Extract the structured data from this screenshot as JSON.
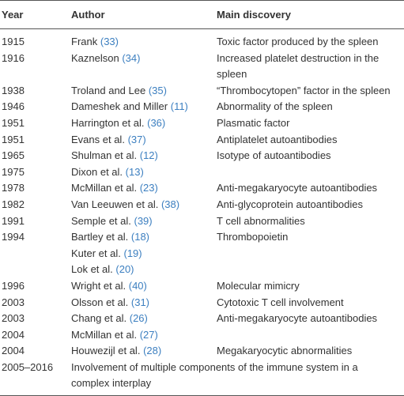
{
  "table": {
    "columns": [
      "Year",
      "Author",
      "Main discovery"
    ],
    "rows": [
      {
        "year": "1915",
        "authors": [
          {
            "name": "Frank",
            "ref": "(33)"
          }
        ],
        "discovery": "Toxic factor produced by the spleen"
      },
      {
        "year": "1916",
        "authors": [
          {
            "name": "Kaznelson",
            "ref": "(34)"
          }
        ],
        "discovery": "Increased platelet destruction in the spleen"
      },
      {
        "year": "1938",
        "authors": [
          {
            "name": "Troland and Lee",
            "ref": "(35)"
          }
        ],
        "discovery": "“Thrombocytopen” factor in the spleen"
      },
      {
        "year": "1946",
        "authors": [
          {
            "name": "Dameshek and Miller",
            "ref": "(11)"
          }
        ],
        "discovery": "Abnormality of the spleen"
      },
      {
        "year": "1951",
        "authors": [
          {
            "name": "Harrington et al.",
            "ref": "(36)"
          }
        ],
        "discovery": "Plasmatic factor"
      },
      {
        "year": "1951",
        "authors": [
          {
            "name": "Evans et al.",
            "ref": "(37)"
          }
        ],
        "discovery": "Antiplatelet autoantibodies"
      },
      {
        "year": "1965",
        "authors": [
          {
            "name": "Shulman et al.",
            "ref": "(12)"
          }
        ],
        "discovery": "Isotype of autoantibodies"
      },
      {
        "year": "1975",
        "authors": [
          {
            "name": "Dixon et al.",
            "ref": "(13)"
          }
        ],
        "discovery": null
      },
      {
        "year": "1978",
        "authors": [
          {
            "name": "McMillan et al.",
            "ref": "(23)"
          }
        ],
        "discovery": "Anti-megakaryocyte autoantibodies"
      },
      {
        "year": "1982",
        "authors": [
          {
            "name": "Van Leeuwen et al.",
            "ref": "(38)"
          }
        ],
        "discovery": "Anti-glycoprotein autoantibodies"
      },
      {
        "year": "1991",
        "authors": [
          {
            "name": "Semple et al.",
            "ref": "(39)"
          }
        ],
        "discovery": "T cell abnormalities"
      },
      {
        "year": "1994",
        "authors": [
          {
            "name": "Bartley et al.",
            "ref": "(18)"
          },
          {
            "name": "Kuter et al.",
            "ref": "(19)"
          },
          {
            "name": "Lok et al.",
            "ref": "(20)"
          }
        ],
        "discovery": "Thrombopoietin"
      },
      {
        "year": "1996",
        "authors": [
          {
            "name": "Wright et al.",
            "ref": "(40)"
          }
        ],
        "discovery": "Molecular mimicry"
      },
      {
        "year": "2003",
        "authors": [
          {
            "name": "Olsson et al.",
            "ref": "(31)"
          }
        ],
        "discovery": "Cytotoxic T cell involvement"
      },
      {
        "year": "2003",
        "authors": [
          {
            "name": "Chang et al.",
            "ref": "(26)"
          }
        ],
        "discovery": "Anti-megakaryocyte autoantibodies"
      },
      {
        "year": "2004",
        "authors": [
          {
            "name": "McMillan et al.",
            "ref": "(27)"
          }
        ],
        "discovery": null
      },
      {
        "year": "2004",
        "authors": [
          {
            "name": "Houwezijl et al.",
            "ref": "(28)"
          }
        ],
        "discovery": "Megakaryocytic abnormalities"
      },
      {
        "year": "2005–2016",
        "authors": [],
        "discovery": "Involvement of multiple components of the immune system in a complex interplay"
      }
    ]
  }
}
